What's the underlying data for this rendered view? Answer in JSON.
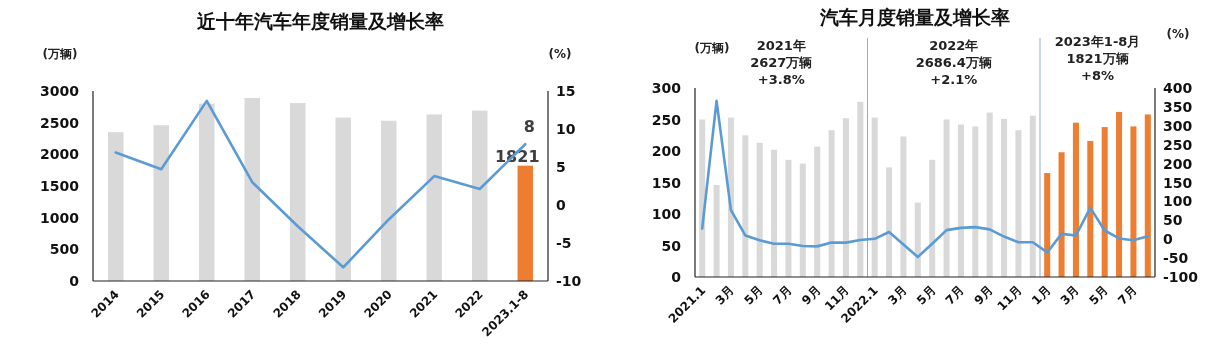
{
  "chart_data": [
    {
      "type": "bar",
      "title": "近十年汽车年度销量及增长率",
      "ylabel": "(万辆)",
      "y2label": "(%)",
      "categories": [
        "2014",
        "2015",
        "2016",
        "2017",
        "2018",
        "2019",
        "2020",
        "2021",
        "2022",
        "2023.1-8"
      ],
      "series": [
        {
          "colors": [
            "#d9d9d9",
            "#d9d9d9",
            "#d9d9d9",
            "#d9d9d9",
            "#d9d9d9",
            "#d9d9d9",
            "#d9d9d9",
            "#d9d9d9",
            "#d9d9d9",
            "#ed7d31"
          ],
          "values": [
            2350,
            2460,
            2800,
            2890,
            2810,
            2580,
            2530,
            2630,
            2690,
            1821
          ],
          "value_labels": [
            null,
            null,
            null,
            null,
            null,
            null,
            null,
            null,
            null,
            "1821"
          ]
        },
        {
          "type": "line",
          "axis": "y2",
          "color": "#5b9bd5",
          "values": [
            6.9,
            4.7,
            13.7,
            3.0,
            -2.8,
            -8.2,
            -1.9,
            3.8,
            2.1,
            8
          ],
          "value_labels": [
            null,
            null,
            null,
            null,
            null,
            null,
            null,
            null,
            null,
            "8"
          ]
        }
      ],
      "ylim": [
        0,
        3000
      ],
      "yticks": [
        0,
        500,
        1000,
        1500,
        2000,
        2500,
        3000
      ],
      "y2lim": [
        -10,
        15
      ],
      "y2ticks": [
        -10,
        -5,
        0,
        5,
        10,
        15
      ]
    },
    {
      "type": "bar",
      "title": "汽车月度销量及增长率",
      "ylabel": "(万辆)",
      "y2label": "(%)",
      "categories": [
        "2021.1",
        null,
        "3月",
        null,
        "5月",
        null,
        "7月",
        null,
        "9月",
        null,
        "11月",
        null,
        "2022.1",
        null,
        "3月",
        null,
        "5月",
        null,
        "7月",
        null,
        "9月",
        null,
        "11月",
        null,
        "1月",
        null,
        "3月",
        null,
        "5月",
        null,
        "7月",
        null
      ],
      "series": [
        {
          "colors": [
            "#d9d9d9",
            "#d9d9d9",
            "#d9d9d9",
            "#d9d9d9",
            "#d9d9d9",
            "#d9d9d9",
            "#d9d9d9",
            "#d9d9d9",
            "#d9d9d9",
            "#d9d9d9",
            "#d9d9d9",
            "#d9d9d9",
            "#d9d9d9",
            "#d9d9d9",
            "#d9d9d9",
            "#d9d9d9",
            "#d9d9d9",
            "#d9d9d9",
            "#d9d9d9",
            "#d9d9d9",
            "#d9d9d9",
            "#d9d9d9",
            "#d9d9d9",
            "#d9d9d9",
            "#ed7d31",
            "#ed7d31",
            "#ed7d31",
            "#ed7d31",
            "#ed7d31",
            "#ed7d31",
            "#ed7d31",
            "#ed7d31"
          ],
          "values": [
            250,
            146,
            253,
            225,
            213,
            202,
            186,
            180,
            207,
            233,
            252,
            278,
            253,
            174,
            223,
            118,
            186,
            250,
            242,
            239,
            261,
            251,
            233,
            256,
            165,
            198,
            245,
            216,
            238,
            262,
            239,
            258
          ]
        },
        {
          "type": "line",
          "axis": "y2",
          "color": "#5b9bd5",
          "values": [
            28,
            366,
            77,
            10,
            -3,
            -12,
            -12,
            -18,
            -19,
            -9,
            -9,
            -2,
            1,
            19,
            -14,
            -47,
            -12,
            24,
            30,
            32,
            26,
            7,
            -8,
            -8,
            -35,
            14,
            10,
            83,
            23,
            2,
            -3,
            8
          ]
        }
      ],
      "ylim": [
        0,
        300
      ],
      "yticks": [
        0,
        50,
        100,
        150,
        200,
        250,
        300
      ],
      "y2lim": [
        -100,
        400
      ],
      "y2ticks": [
        -100,
        -50,
        0,
        50,
        100,
        150,
        200,
        250,
        300,
        350,
        400
      ],
      "annotations": [
        "2021年\n2627万辆\n+3.8%",
        "2022年\n2686.4万辆\n+2.1%",
        "2023年1-8月\n1821万辆\n+8%"
      ]
    }
  ]
}
